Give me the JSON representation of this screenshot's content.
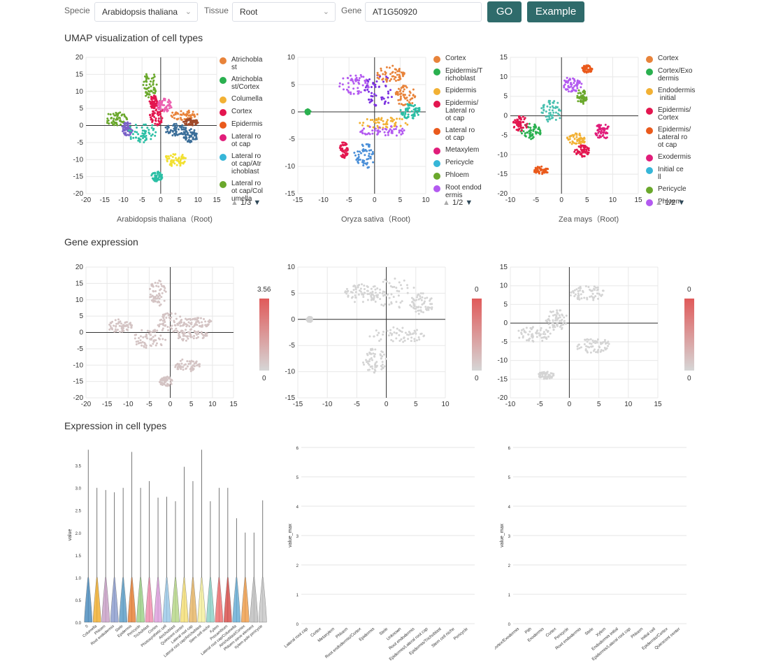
{
  "controls": {
    "specie_label": "Specie",
    "specie_value": "Arabidopsis thaliana",
    "tissue_label": "Tissue",
    "tissue_value": "Root",
    "gene_label": "Gene",
    "gene_value": "AT1G50920",
    "go_label": "GO",
    "example_label": "Example"
  },
  "sections": {
    "umap_title": "UMAP visualization of cell types",
    "gene_expr_title": "Gene expression",
    "cell_types_title": "Expression in cell types"
  },
  "umap_panels": [
    {
      "caption": "Arabidopsis thaliana（Root)",
      "pager": "1/3",
      "legend": [
        {
          "label": "Atrichobla\nst",
          "color": "#e8833a"
        },
        {
          "label": "Atrichobla\nst/Cortex",
          "color": "#2ab04f"
        },
        {
          "label": "Columella",
          "color": "#f2b134"
        },
        {
          "label": "Cortex",
          "color": "#e3164f"
        },
        {
          "label": "Epidermis",
          "color": "#ea5a1c"
        },
        {
          "label": "Lateral ro\not cap",
          "color": "#e11d7a"
        },
        {
          "label": "Lateral ro\not cap/Atr\nichoblast",
          "color": "#36b6d8"
        },
        {
          "label": "Lateral ro\not cap/Col\numella",
          "color": "#6aa82c"
        }
      ]
    },
    {
      "caption": "Oryza sativa（Root)",
      "pager": "1/2",
      "legend": [
        {
          "label": "Cortex",
          "color": "#e8833a"
        },
        {
          "label": "Epidermis/T\nrichoblast",
          "color": "#2ab04f"
        },
        {
          "label": "Epidermis",
          "color": "#f2b134"
        },
        {
          "label": "Epidermis/\nLateral ro\not cap",
          "color": "#e3164f"
        },
        {
          "label": "Lateral ro\not cap",
          "color": "#ea5a1c"
        },
        {
          "label": "Metaxylem",
          "color": "#e11d7a"
        },
        {
          "label": "Pericycle",
          "color": "#36b6d8"
        },
        {
          "label": "Phloem",
          "color": "#6aa82c"
        },
        {
          "label": "Root endod\nermis",
          "color": "#b35af0"
        }
      ]
    },
    {
      "caption": "Zea mays（Root)",
      "pager": "1/2",
      "legend": [
        {
          "label": "Cortex",
          "color": "#e8833a"
        },
        {
          "label": "Cortex/Exo\ndermis",
          "color": "#2ab04f"
        },
        {
          "label": "Endodermis\n initial",
          "color": "#f2b134"
        },
        {
          "label": "Epidermis/\nCortex",
          "color": "#e3164f"
        },
        {
          "label": "Epidermis/\nLateral ro\not cap",
          "color": "#ea5a1c"
        },
        {
          "label": "Exodermis",
          "color": "#e11d7a"
        },
        {
          "label": "Initial ce\nll",
          "color": "#36b6d8"
        },
        {
          "label": "Pericycle",
          "color": "#6aa82c"
        },
        {
          "label": "Phloem",
          "color": "#b35af0"
        }
      ]
    }
  ],
  "expression_scales": [
    {
      "max": "3.56",
      "min": "0"
    },
    {
      "max": "0",
      "min": "0"
    },
    {
      "max": "0",
      "min": "0"
    }
  ],
  "chart_data": [
    {
      "type": "scatter",
      "panel": "umap-arabidopsis",
      "xlim": [
        -20,
        15
      ],
      "ylim": [
        -20,
        20
      ],
      "xticks": [
        -20,
        -15,
        -10,
        -5,
        0,
        5,
        10,
        15
      ],
      "yticks": [
        20,
        15,
        10,
        5,
        0,
        -5,
        -10,
        -15,
        -20
      ],
      "grid": true
    },
    {
      "type": "scatter",
      "panel": "umap-oryza",
      "xlim": [
        -15,
        10
      ],
      "ylim": [
        -15,
        10
      ],
      "xticks": [
        -15,
        -10,
        -5,
        0,
        5,
        10
      ],
      "yticks": [
        10,
        5,
        0,
        -5,
        -10,
        -15
      ],
      "grid": true
    },
    {
      "type": "scatter",
      "panel": "umap-zea",
      "xlim": [
        -10,
        15
      ],
      "ylim": [
        -20,
        15
      ],
      "xticks": [
        -10,
        -5,
        0,
        5,
        10,
        15
      ],
      "yticks": [
        15,
        10,
        5,
        0,
        -5,
        -10,
        -15,
        -20
      ],
      "grid": true
    },
    {
      "type": "scatter",
      "panel": "expr-arabidopsis",
      "xlim": [
        -20,
        15
      ],
      "ylim": [
        -20,
        20
      ],
      "xticks": [
        -20,
        -15,
        -10,
        -5,
        0,
        5,
        10,
        15
      ],
      "yticks": [
        20,
        15,
        10,
        5,
        0,
        -5,
        -10,
        -15,
        -20
      ],
      "grid": true
    },
    {
      "type": "scatter",
      "panel": "expr-oryza",
      "xlim": [
        -15,
        10
      ],
      "ylim": [
        -15,
        10
      ],
      "xticks": [
        -15,
        -10,
        -5,
        0,
        5,
        10
      ],
      "yticks": [
        10,
        5,
        0,
        -5,
        -10,
        -15
      ],
      "grid": true
    },
    {
      "type": "scatter",
      "panel": "expr-zea",
      "xlim": [
        -10,
        15
      ],
      "ylim": [
        -20,
        15
      ],
      "xticks": [
        -10,
        -5,
        0,
        5,
        10,
        15
      ],
      "yticks": [
        15,
        10,
        5,
        0,
        -5,
        -10,
        -15,
        -20
      ],
      "grid": true
    },
    {
      "type": "violin",
      "panel": "violin-arabidopsis",
      "ylabel": "value",
      "ylim": [
        0,
        3.9
      ],
      "yticks": [
        "0.0",
        "0.5",
        "1.0",
        "1.5",
        "2.0",
        "2.5",
        "3.0",
        "3.5"
      ],
      "categories": [
        "0",
        "Columella",
        "Phloem",
        "Root endodermis",
        "Stele",
        "Epidermis",
        "Pericycle",
        "Trichoblast",
        "Cortex",
        "Photosynthetic cell",
        "Atrichoblast",
        "Quiescent center",
        "Lateral root cap",
        "Lateral root cap/Atrichoblast",
        "Stem cell niche",
        "Xylem",
        "Procambium",
        "Lateral root cap/Columella",
        "Atrichoblast/Cortex",
        "Phloem sieve element",
        "Xylem pole pericycle"
      ],
      "max_values": [
        3.85,
        3.0,
        2.95,
        2.9,
        3.0,
        3.8,
        3.0,
        3.15,
        2.78,
        2.8,
        2.7,
        3.47,
        3.15,
        3.85,
        2.7,
        3.0,
        3.0,
        2.32,
        2.0,
        2.0,
        2.72
      ],
      "colors": [
        "#4f8fc0",
        "#f2b134",
        "#c9a2c8",
        "#8f9fd0",
        "#5f9fc8",
        "#e8833a",
        "#9ed38a",
        "#f08fb0",
        "#dda0dd",
        "#9cc9e8",
        "#b9d98b",
        "#f5e07a",
        "#e8b86a",
        "#f5f0a0",
        "#8fd3c8",
        "#f07070",
        "#d9534f",
        "#6aaed6",
        "#f0a050",
        "#c0c0c0",
        "#c8c8c8"
      ]
    },
    {
      "type": "bar",
      "panel": "expr-max-oryza",
      "ylabel": "value_max",
      "ylim": [
        0,
        6
      ],
      "yticks": [
        "0",
        "1",
        "2",
        "3",
        "4",
        "5",
        "6"
      ],
      "categories": [
        "Lateral root cap",
        "Cortex",
        "Metaxylem",
        "Phloem",
        "Root endodermis/Cortex",
        "Epidermis",
        "Stele",
        "Unknown",
        "Root endodermis",
        "Epidermis/Lateral root cap",
        "Epidermis/Trichoblast",
        "Stem cell niche",
        "Pericycle"
      ],
      "values": [
        0,
        0,
        0,
        0,
        0,
        0,
        0,
        0,
        0,
        0,
        0,
        0,
        0
      ]
    },
    {
      "type": "bar",
      "panel": "expr-max-zea",
      "ylabel": "value_max",
      "ylim": [
        0,
        6
      ],
      "yticks": [
        "0",
        "1",
        "2",
        "3",
        "4",
        "5",
        "6"
      ],
      "categories": [
        "Cortex/Exodermis",
        "Pith",
        "Exodermis",
        "Cortex",
        "Pericycle",
        "Root endodermis",
        "Stele",
        "Xylem",
        "Endodermis initial",
        "Epidermis/Lateral root cap",
        "Phloem",
        "Initial cell",
        "Epidermis/Cortex",
        "Quiescent center"
      ],
      "values": [
        0,
        0,
        0,
        0,
        0,
        0,
        0,
        0,
        0,
        0,
        0,
        0,
        0,
        0
      ]
    }
  ]
}
